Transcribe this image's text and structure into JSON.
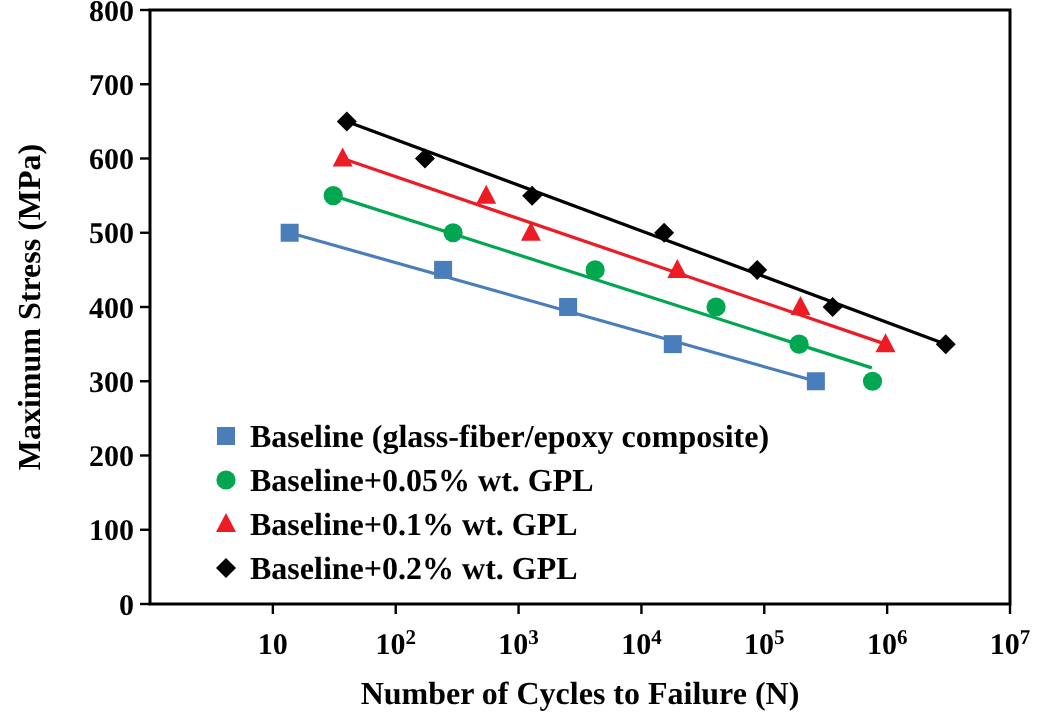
{
  "chart_data": {
    "type": "scatter",
    "xlabel": "Number of Cycles to Failure (N)",
    "ylabel": "Maximum Stress (MPa)",
    "log": "x",
    "xlim": [
      1,
      10000000
    ],
    "xticks": [
      10,
      {
        "value": 100,
        "label": "10$^{2}$"
      },
      {
        "value": 1000,
        "label": "10$^{3}$"
      },
      {
        "value": 10000,
        "label": "10$^{4}$"
      },
      {
        "value": 100000,
        "label": "10$^{5}$"
      },
      {
        "value": 1000000,
        "label": "10$^{6}$"
      },
      {
        "value": 10000000,
        "label": "10$^{7}$"
      }
    ],
    "ylim": [
      0,
      800
    ],
    "yticks": [
      0,
      100,
      200,
      300,
      400,
      500,
      600,
      700,
      800
    ],
    "grid": false,
    "legend": "bottom left",
    "series": [
      {
        "name": "Baseline (glass-fiber/epoxy composite)",
        "color": "#4a7ebb",
        "marker": "square",
        "x": [
          13.7,
          243,
          2530,
          18000,
          263000
        ],
        "values": [
          500,
          450,
          400,
          350,
          300
        ]
      },
      {
        "name": "Baseline+0.05% wt. GPL",
        "color": "#00a650",
        "marker": "circle",
        "x": [
          31,
          293,
          4200,
          40500,
          192000,
          760000
        ],
        "values": [
          550,
          500,
          450,
          400,
          350,
          300
        ]
      },
      {
        "name": "Baseline+0.1% wt. GPL",
        "color": "#ed1c24",
        "marker": "triangle",
        "x": [
          37,
          545,
          1260,
          19600,
          197000,
          970000
        ],
        "values": [
          600,
          550,
          500,
          450,
          400,
          350
        ]
      },
      {
        "name": "Baseline+0.2% wt. GPL",
        "color": "#000000",
        "marker": "diamond",
        "x": [
          40,
          173,
          1290,
          15300,
          87500,
          360000,
          3000000
        ],
        "values": [
          650,
          600,
          550,
          500,
          450,
          400,
          350
        ]
      },
      {
        "type": "line",
        "color": "#4a7ebb",
        "line_style": "solid",
        "x": [
          13.7,
          263000
        ],
        "values": [
          500,
          300
        ]
      },
      {
        "type": "line",
        "color": "#00a650",
        "line_style": "solid",
        "x": [
          31,
          750000
        ],
        "values": [
          550,
          318
        ]
      },
      {
        "type": "line",
        "color": "#ed1c24",
        "line_style": "solid",
        "x": [
          37,
          970000
        ],
        "values": [
          600,
          350
        ]
      },
      {
        "type": "line",
        "color": "#000000",
        "line_style": "solid",
        "x": [
          40,
          3000000
        ],
        "values": [
          650,
          350
        ]
      }
    ]
  }
}
